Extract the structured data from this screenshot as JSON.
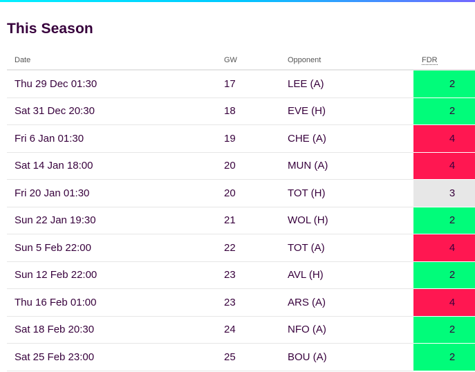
{
  "section": {
    "title": "This Season"
  },
  "table": {
    "headers": {
      "date": "Date",
      "gw": "GW",
      "opponent": "Opponent",
      "fdr": "FDR"
    },
    "rows": [
      {
        "date": "Thu 29 Dec 01:30",
        "gw": "17",
        "opponent": "LEE (A)",
        "fdr": "2"
      },
      {
        "date": "Sat 31 Dec 20:30",
        "gw": "18",
        "opponent": "EVE (H)",
        "fdr": "2"
      },
      {
        "date": "Fri 6 Jan 01:30",
        "gw": "19",
        "opponent": "CHE (A)",
        "fdr": "4"
      },
      {
        "date": "Sat 14 Jan 18:00",
        "gw": "20",
        "opponent": "MUN (A)",
        "fdr": "4"
      },
      {
        "date": "Fri 20 Jan 01:30",
        "gw": "20",
        "opponent": "TOT (H)",
        "fdr": "3"
      },
      {
        "date": "Sun 22 Jan 19:30",
        "gw": "21",
        "opponent": "WOL (H)",
        "fdr": "2"
      },
      {
        "date": "Sun 5 Feb 22:00",
        "gw": "22",
        "opponent": "TOT (A)",
        "fdr": "4"
      },
      {
        "date": "Sun 12 Feb 22:00",
        "gw": "23",
        "opponent": "AVL (H)",
        "fdr": "2"
      },
      {
        "date": "Thu 16 Feb 01:00",
        "gw": "23",
        "opponent": "ARS (A)",
        "fdr": "4"
      },
      {
        "date": "Sat 18 Feb 20:30",
        "gw": "24",
        "opponent": "NFO (A)",
        "fdr": "2"
      },
      {
        "date": "Sat 25 Feb 23:00",
        "gw": "25",
        "opponent": "BOU (A)",
        "fdr": "2"
      }
    ]
  },
  "colors": {
    "fdr_2": "#01fc7a",
    "fdr_3": "#e7e7e7",
    "fdr_4": "#ff1751",
    "text": "#37003c"
  }
}
